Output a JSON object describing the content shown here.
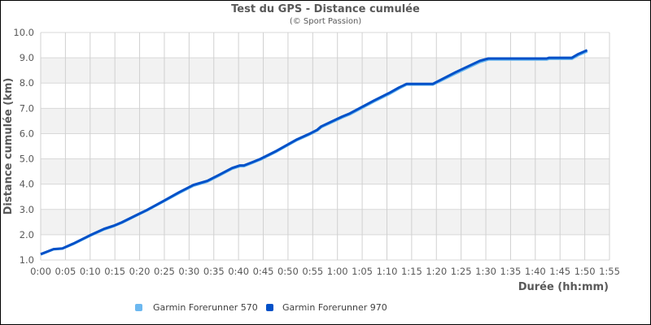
{
  "chart_data": {
    "type": "line",
    "title": "Test du GPS - Distance cumulée",
    "subtitle": "(© Sport Passion)",
    "xlabel": "Durée (hh:mm)",
    "ylabel": "Distance cumulée (km)",
    "xlim": [
      "0:00",
      "1:55"
    ],
    "ylim": [
      1.0,
      10.0
    ],
    "x_ticks": [
      "0:00",
      "0:05",
      "0:10",
      "0:15",
      "0:20",
      "0:25",
      "0:30",
      "0:35",
      "0:40",
      "0:45",
      "0:50",
      "0:55",
      "1:00",
      "1:05",
      "1:10",
      "1:15",
      "1:20",
      "1:25",
      "1:30",
      "1:35",
      "1:40",
      "1:45",
      "1:50",
      "1:55"
    ],
    "y_ticks": [
      "1.0",
      "2.0",
      "3.0",
      "4.0",
      "5.0",
      "6.0",
      "7.0",
      "8.0",
      "9.0",
      "10.0"
    ],
    "grid": true,
    "legend_position": "bottom-left",
    "series": [
      {
        "name": "Garmin Forerunner 570",
        "color": "#6cb8f0",
        "x": [
          "0:00:00",
          "0:02:36",
          "0:04:24",
          "0:06:36",
          "0:09:54",
          "0:12:48",
          "0:14:48",
          "0:16:24",
          "0:19:24",
          "0:21:24",
          "0:24:42",
          "0:28:00",
          "0:30:54",
          "0:33:42",
          "0:36:12",
          "0:38:42",
          "0:40:18",
          "0:41:06",
          "0:42:48",
          "0:44:24",
          "0:47:42",
          "0:51:48",
          "0:54:18",
          "0:55:54",
          "0:56:42",
          "1:00:54",
          "1:02:30",
          "1:07:24",
          "1:10:42",
          "1:12:24",
          "1:14:00",
          "1:19:18",
          "1:23:54",
          "1:28:48",
          "1:30:30",
          "1:42:18",
          "1:42:48",
          "1:47:24",
          "1:48:36",
          "1:50:30"
        ],
        "y": [
          1.22,
          1.42,
          1.45,
          1.63,
          1.95,
          2.21,
          2.34,
          2.47,
          2.76,
          2.95,
          3.3,
          3.65,
          3.94,
          4.1,
          4.35,
          4.61,
          4.71,
          4.71,
          4.84,
          4.97,
          5.29,
          5.74,
          5.96,
          6.12,
          6.25,
          6.63,
          6.76,
          7.27,
          7.59,
          7.78,
          7.94,
          7.94,
          8.38,
          8.83,
          8.93,
          8.93,
          8.96,
          8.96,
          9.09,
          9.25
        ]
      },
      {
        "name": "Garmin Forerunner 970",
        "color": "#0050c8",
        "x": [
          "0:00:00",
          "0:02:36",
          "0:04:24",
          "0:06:36",
          "0:09:54",
          "0:12:48",
          "0:14:48",
          "0:16:24",
          "0:19:24",
          "0:21:24",
          "0:24:42",
          "0:28:00",
          "0:30:54",
          "0:33:42",
          "0:36:12",
          "0:38:42",
          "0:40:18",
          "0:41:06",
          "0:42:48",
          "0:44:24",
          "0:47:42",
          "0:51:48",
          "0:54:18",
          "0:55:54",
          "0:56:42",
          "1:00:54",
          "1:02:30",
          "1:07:24",
          "1:10:42",
          "1:12:24",
          "1:14:00",
          "1:19:18",
          "1:23:54",
          "1:28:48",
          "1:30:30",
          "1:42:18",
          "1:42:48",
          "1:47:24",
          "1:48:36",
          "1:50:30"
        ],
        "y": [
          1.23,
          1.43,
          1.46,
          1.65,
          1.97,
          2.23,
          2.36,
          2.49,
          2.78,
          2.97,
          3.32,
          3.68,
          3.97,
          4.13,
          4.38,
          4.64,
          4.74,
          4.74,
          4.87,
          5.0,
          5.32,
          5.77,
          5.99,
          6.15,
          6.28,
          6.67,
          6.8,
          7.31,
          7.63,
          7.82,
          7.97,
          7.97,
          8.43,
          8.88,
          8.97,
          8.97,
          9.0,
          9.0,
          9.14,
          9.3
        ]
      }
    ]
  }
}
